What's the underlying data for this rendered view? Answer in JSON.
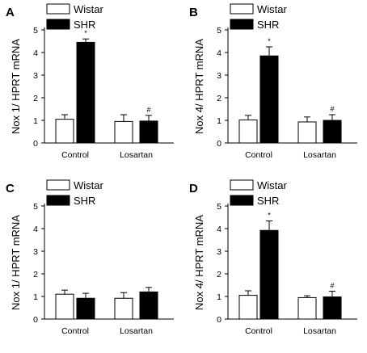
{
  "chart_data": [
    {
      "panel_letter": "A",
      "type": "bar",
      "ylabel": "Nox 1/ HPRT mRNA",
      "ylim": [
        0,
        5
      ],
      "yticks": [
        0,
        1,
        2,
        3,
        4,
        5
      ],
      "categories": [
        "Control",
        "Losartan"
      ],
      "legend": [
        "Wistar",
        "SHR"
      ],
      "legend_position": "top-left",
      "grid": false,
      "series": [
        {
          "name": "Wistar",
          "fill": "#ffffff",
          "values": [
            1.05,
            0.95
          ],
          "errors": [
            0.2,
            0.3
          ]
        },
        {
          "name": "SHR",
          "fill": "#000000",
          "values": [
            4.45,
            0.97
          ],
          "errors": [
            0.15,
            0.25
          ]
        }
      ],
      "annotations": [
        {
          "series": 1,
          "category": 0,
          "text": "*"
        },
        {
          "series": 1,
          "category": 1,
          "text": "#"
        }
      ]
    },
    {
      "panel_letter": "B",
      "type": "bar",
      "ylabel": "Nox 4/ HPRT mRNA",
      "ylim": [
        0,
        5
      ],
      "yticks": [
        0,
        1,
        2,
        3,
        4,
        5
      ],
      "categories": [
        "Control",
        "Losartan"
      ],
      "legend": [
        "Wistar",
        "SHR"
      ],
      "legend_position": "top-left",
      "grid": false,
      "series": [
        {
          "name": "Wistar",
          "fill": "#ffffff",
          "values": [
            1.02,
            0.93
          ],
          "errors": [
            0.2,
            0.22
          ]
        },
        {
          "name": "SHR",
          "fill": "#000000",
          "values": [
            3.85,
            1.0
          ],
          "errors": [
            0.4,
            0.25
          ]
        }
      ],
      "annotations": [
        {
          "series": 1,
          "category": 0,
          "text": "*"
        },
        {
          "series": 1,
          "category": 1,
          "text": "#"
        }
      ]
    },
    {
      "panel_letter": "C",
      "type": "bar",
      "ylabel": "Nox 1/ HPRT mRNA",
      "ylim": [
        0,
        5
      ],
      "yticks": [
        0,
        1,
        2,
        3,
        4,
        5
      ],
      "categories": [
        "Control",
        "Losartan"
      ],
      "legend": [
        "Wistar",
        "SHR"
      ],
      "legend_position": "top-left",
      "grid": false,
      "series": [
        {
          "name": "Wistar",
          "fill": "#ffffff",
          "values": [
            1.1,
            0.92
          ],
          "errors": [
            0.18,
            0.25
          ]
        },
        {
          "name": "SHR",
          "fill": "#000000",
          "values": [
            0.92,
            1.2
          ],
          "errors": [
            0.22,
            0.2
          ]
        }
      ],
      "annotations": []
    },
    {
      "panel_letter": "D",
      "type": "bar",
      "ylabel": "Nox 4/ HPRT mRNA",
      "ylim": [
        0,
        5
      ],
      "yticks": [
        0,
        1,
        2,
        3,
        4,
        5
      ],
      "categories": [
        "Control",
        "Losartan"
      ],
      "legend": [
        "Wistar",
        "SHR"
      ],
      "legend_position": "top-left",
      "grid": false,
      "series": [
        {
          "name": "Wistar",
          "fill": "#ffffff",
          "values": [
            1.05,
            0.95
          ],
          "errors": [
            0.2,
            0.08
          ]
        },
        {
          "name": "SHR",
          "fill": "#000000",
          "values": [
            3.92,
            0.98
          ],
          "errors": [
            0.42,
            0.25
          ]
        }
      ],
      "annotations": [
        {
          "series": 1,
          "category": 0,
          "text": "*"
        },
        {
          "series": 1,
          "category": 1,
          "text": "#"
        }
      ]
    }
  ]
}
